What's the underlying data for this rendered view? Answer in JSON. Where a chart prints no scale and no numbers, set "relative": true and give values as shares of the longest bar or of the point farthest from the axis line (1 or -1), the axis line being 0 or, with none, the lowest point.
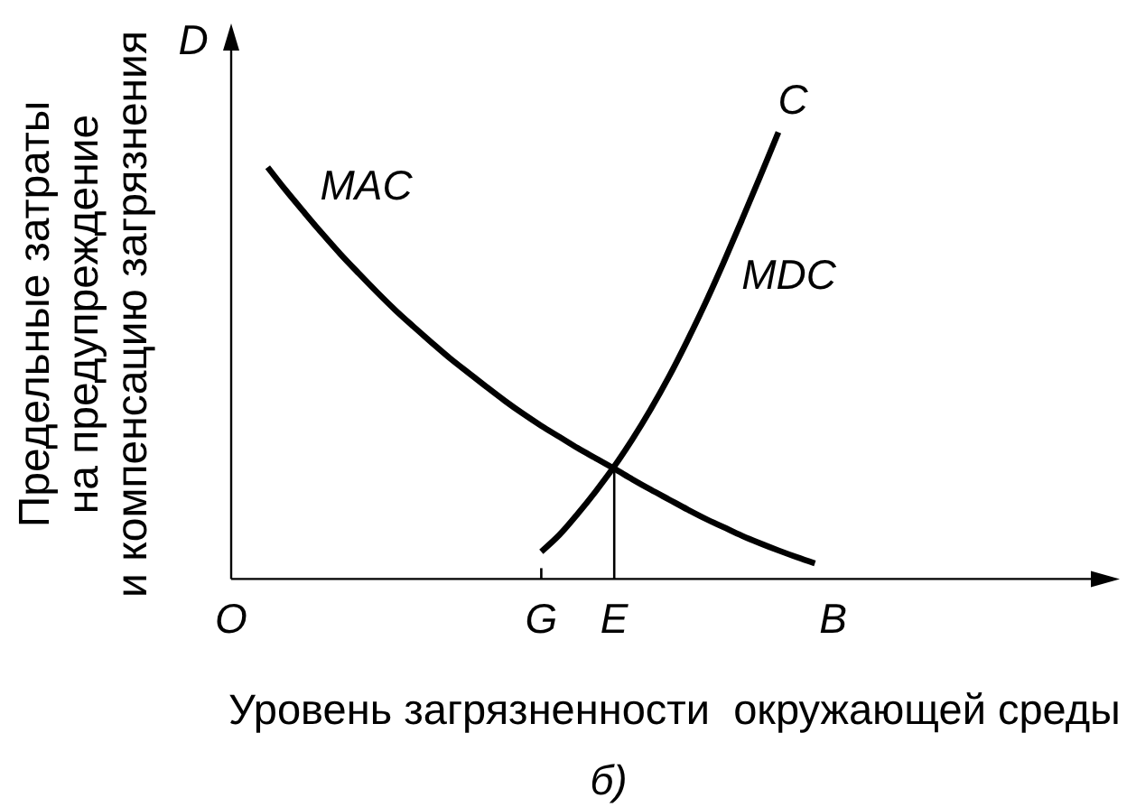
{
  "chart_data": {
    "type": "line",
    "relative": true,
    "xlabel": "Уровень загрязненности  окружающей среды",
    "ylabel": "Предельные затраты\nна предупреждение\nи компенсацию загрязнения",
    "categories": [
      "O",
      null,
      null,
      null,
      null,
      null,
      null,
      null,
      null,
      null,
      null,
      null,
      null,
      null,
      null,
      null,
      null,
      "G",
      null,
      null,
      null,
      "E",
      null,
      null,
      null,
      null,
      null,
      null,
      null,
      null,
      null,
      null,
      null,
      "B"
    ],
    "series": [
      {
        "name": "MAC",
        "color": "#000000",
        "values": [
          null,
          null,
          0.922,
          0.87,
          0.821,
          0.773,
          0.727,
          0.684,
          0.642,
          0.602,
          0.565,
          0.529,
          0.494,
          0.462,
          0.43,
          0.399,
          0.37,
          0.343,
          0.318,
          0.293,
          0.27,
          0.247,
          0.223,
          0.2,
          0.178,
          0.156,
          0.135,
          0.116,
          0.097,
          0.08,
          0.064,
          0.049,
          0.035,
          null
        ]
      },
      {
        "name": "MDC",
        "color": "#000000",
        "values": [
          null,
          null,
          null,
          null,
          null,
          null,
          null,
          null,
          null,
          null,
          null,
          null,
          null,
          null,
          null,
          null,
          null,
          0.061,
          0.099,
          0.146,
          0.197,
          0.252,
          0.313,
          0.38,
          0.453,
          0.533,
          0.618,
          0.709,
          0.804,
          0.901,
          1,
          null,
          null,
          null
        ]
      },
      {
        "color": "#000000",
        "x": [
          "E",
          "E"
        ],
        "values": [
          0,
          0.25
        ]
      }
    ],
    "annotations": [
      "D",
      "C",
      "б)"
    ],
    "legend": false,
    "marker": "none",
    "line_style": "solid"
  }
}
